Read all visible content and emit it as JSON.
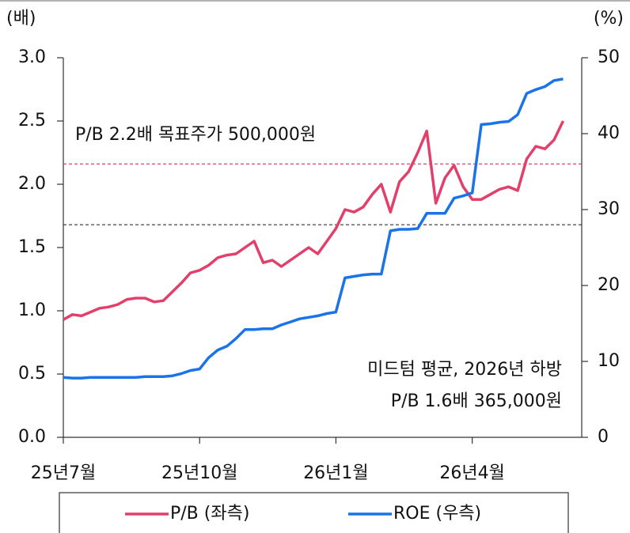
{
  "chart_data": {
    "type": "line",
    "y_label": "(배)",
    "y2_label": "(%)",
    "x": [
      0,
      0.2,
      0.4,
      0.6,
      0.8,
      1.0,
      1.2,
      1.4,
      1.6,
      1.8,
      2.0,
      2.2,
      2.4,
      2.6,
      2.8,
      3.0,
      3.2,
      3.4,
      3.6,
      3.8,
      4.0,
      4.2,
      4.4,
      4.6,
      4.8,
      5.0,
      5.2,
      5.4,
      5.6,
      5.8,
      6.0,
      6.2,
      6.4,
      6.6,
      6.8,
      7.0,
      7.2,
      7.4,
      7.6,
      7.8,
      8.0,
      8.2,
      8.4,
      8.6,
      8.8,
      9.0,
      9.2,
      9.4,
      9.6,
      9.8,
      10.0,
      10.2,
      10.4,
      10.6,
      10.8,
      11.0
    ],
    "xlim": [
      0,
      11.41
    ],
    "xticks": [
      {
        "value": 0,
        "label": "25년7월"
      },
      {
        "value": 3,
        "label": "25년10월"
      },
      {
        "value": 6,
        "label": "26년1월"
      },
      {
        "value": 9,
        "label": "26년4월"
      }
    ],
    "ylim": [
      0,
      3
    ],
    "yticks": [
      {
        "value": 0,
        "label": "0.0"
      },
      0.5,
      {
        "value": 1,
        "label": "1.0"
      },
      1.5,
      {
        "value": 2,
        "label": "2.0"
      },
      2.5,
      {
        "value": 3,
        "label": "3.0"
      }
    ],
    "y2lim": [
      0,
      50
    ],
    "y2ticks": [
      0,
      10,
      20,
      30,
      40,
      50
    ],
    "series": [
      {
        "name": "P/B (좌측)",
        "color": "#e2406b",
        "values": [
          0.93,
          0.97,
          0.96,
          0.99,
          1.02,
          1.03,
          1.05,
          1.09,
          1.1,
          1.1,
          1.07,
          1.08,
          1.15,
          1.22,
          1.3,
          1.32,
          1.36,
          1.42,
          1.44,
          1.45,
          1.5,
          1.55,
          1.38,
          1.4,
          1.35,
          1.4,
          1.45,
          1.5,
          1.45,
          1.55,
          1.65,
          1.8,
          1.78,
          1.82,
          1.92,
          2.0,
          1.78,
          2.02,
          2.1,
          2.25,
          2.42,
          1.85,
          2.05,
          2.15,
          1.98,
          1.88,
          1.88,
          1.92,
          1.96,
          1.98,
          1.95,
          2.2,
          2.3,
          2.28,
          2.35,
          2.5
        ]
      },
      {
        "name": "ROE (우측)",
        "color": "#1a73e8",
        "axis": "y2",
        "values": [
          7.9,
          7.8,
          7.8,
          7.9,
          7.9,
          7.9,
          7.9,
          7.9,
          7.9,
          8.0,
          8.0,
          8.0,
          8.1,
          8.4,
          8.8,
          9.0,
          10.5,
          11.5,
          12.0,
          13.0,
          14.2,
          14.2,
          14.3,
          14.3,
          14.8,
          15.2,
          15.6,
          15.8,
          16.0,
          16.3,
          16.5,
          21.0,
          21.2,
          21.4,
          21.5,
          21.5,
          27.2,
          27.4,
          27.4,
          27.5,
          29.5,
          29.5,
          29.5,
          31.5,
          31.8,
          32.2,
          41.2,
          41.3,
          41.5,
          41.6,
          42.5,
          45.3,
          45.8,
          46.2,
          47.0,
          47.2
        ]
      }
    ],
    "hlines": [
      {
        "value": 2.16,
        "color": "#e2406b"
      },
      {
        "value": 1.68,
        "color": "#333333"
      }
    ],
    "annotations": [
      "P/B 2.2배 목표주가 500,000원",
      "미드텀 평균, 2026년 하방",
      "P/B 1.6배 365,000원"
    ]
  }
}
